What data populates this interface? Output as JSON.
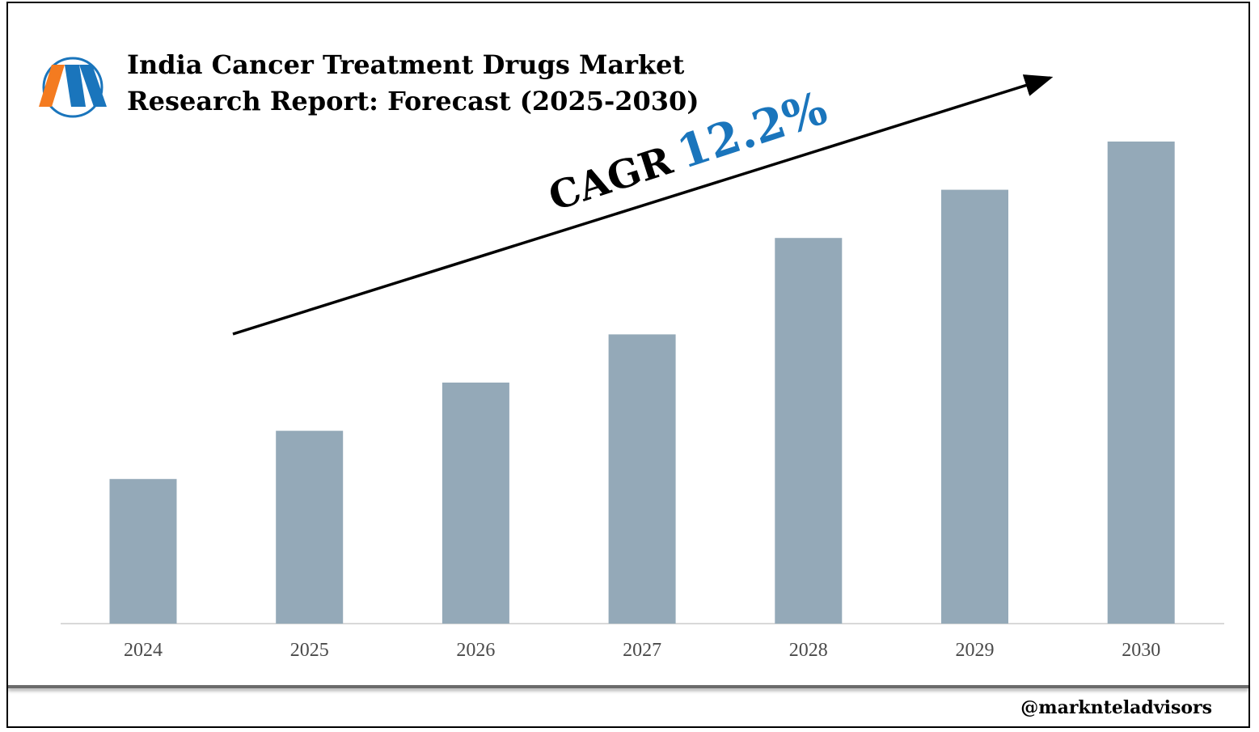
{
  "title": {
    "line1": "India Cancer Treatment Drugs Market",
    "line2": "Research Report: Forecast (2025-2030)"
  },
  "cagr": {
    "label": "CAGR",
    "value": "12.2%"
  },
  "footer": {
    "handle": "@marknteladvisors"
  },
  "logo": {
    "icon": "m-letter-logo",
    "colors": [
      "#f47b20",
      "#1a75bc"
    ]
  },
  "colors": {
    "bar": "#94a9b8",
    "axis": "#d9d9d9",
    "cagr_value": "#1a75bc",
    "arrow": "#000000"
  },
  "chart_data": {
    "type": "bar",
    "categories": [
      "2024",
      "2025",
      "2026",
      "2027",
      "2028",
      "2029",
      "2030"
    ],
    "values": [
      30,
      40,
      50,
      60,
      80,
      90,
      100
    ],
    "ylim": [
      0,
      100
    ],
    "title": "India Cancer Treatment Drugs Market Research Report: Forecast (2025-2030)",
    "xlabel": "",
    "ylabel": "",
    "grid": false,
    "legend": "none"
  }
}
